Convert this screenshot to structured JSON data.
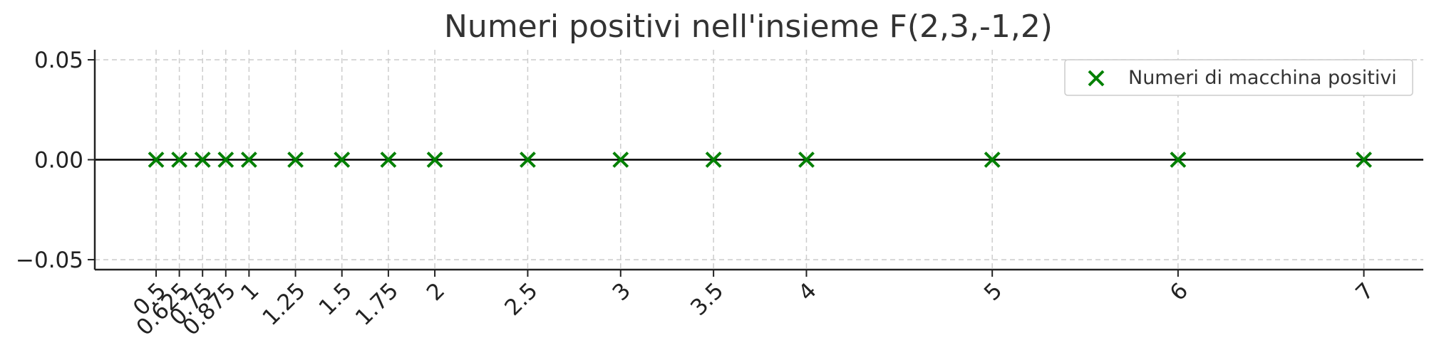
{
  "chart_data": {
    "type": "scatter",
    "title": "Numeri positivi nell'insieme F(2,3,-1,2)",
    "xlabel": "",
    "ylabel": "",
    "x": [
      0.5,
      0.625,
      0.75,
      0.875,
      1,
      1.25,
      1.5,
      1.75,
      2,
      2.5,
      3,
      3.5,
      4,
      5,
      6,
      7
    ],
    "x_tick_labels": [
      "0.5",
      "0.625",
      "0.75",
      "0.875",
      "1",
      "1.25",
      "1.5",
      "1.75",
      "2",
      "2.5",
      "3",
      "3.5",
      "4",
      "5",
      "6",
      "7"
    ],
    "series": [
      {
        "name": "Numeri di macchina positivi",
        "x": [
          0.5,
          0.625,
          0.75,
          0.875,
          1,
          1.25,
          1.5,
          1.75,
          2,
          2.5,
          3,
          3.5,
          4,
          5,
          6,
          7
        ],
        "y": [
          0,
          0,
          0,
          0,
          0,
          0,
          0,
          0,
          0,
          0,
          0,
          0,
          0,
          0,
          0,
          0
        ],
        "marker": "x",
        "color": "#008000"
      }
    ],
    "xlim": [
      0.17,
      7.32
    ],
    "ylim": [
      -0.055,
      0.055
    ],
    "y_ticks": [
      0.05,
      0,
      -0.05
    ],
    "y_tick_labels": [
      "0.05",
      "0.00",
      "−0.05"
    ],
    "horizontal_line": 0,
    "grid": true,
    "legend_position": "top-right"
  }
}
